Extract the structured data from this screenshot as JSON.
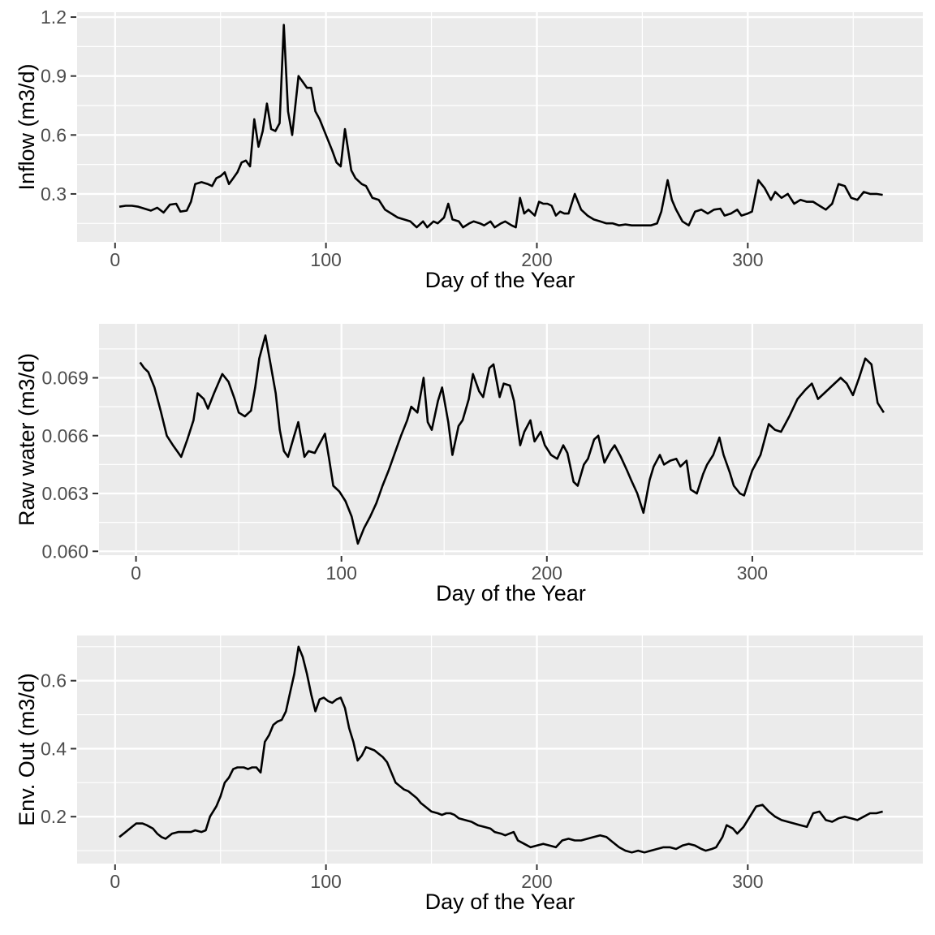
{
  "page": {
    "kind": "stacked-line-charts",
    "background": "#ffffff"
  },
  "style": {
    "panel_fill": "#EBEBEB",
    "grid_major_color": "#FFFFFF",
    "grid_minor_color": "#FFFFFF",
    "line_color": "#000000",
    "tick_label_color": "#4D4D4D",
    "tick_mark_color": "#333333",
    "axis_title_color": "#000000"
  },
  "chart_data": [
    {
      "type": "line",
      "title": "",
      "xlabel": "Day of the Year",
      "ylabel": "Inflow (m3/d)",
      "legend": "none",
      "grid": true,
      "xlim": [
        -18,
        383
      ],
      "ylim": [
        0.056,
        1.225
      ],
      "x_ticks": [
        0,
        100,
        200,
        300
      ],
      "x_tick_labels": [
        "0",
        "100",
        "200",
        "300"
      ],
      "x_minor_ticks": [
        50,
        150,
        250,
        350
      ],
      "y_ticks": [
        0.3,
        0.6,
        0.9,
        1.2
      ],
      "y_tick_labels": [
        "0.3",
        "0.6",
        "0.9",
        "1.2"
      ],
      "y_minor_ticks": [
        0.15,
        0.45,
        0.75,
        1.05
      ],
      "series": [
        {
          "name": "inflow",
          "x": [
            2,
            5,
            8,
            11,
            14,
            17,
            20,
            23,
            26,
            29,
            31,
            34,
            36,
            38,
            41,
            44,
            46,
            48,
            50,
            52,
            54,
            56,
            58,
            60,
            62,
            64,
            66,
            68,
            70,
            72,
            74,
            76,
            78,
            80,
            82,
            84,
            87,
            89,
            91,
            93,
            95,
            97,
            100,
            103,
            105,
            107,
            109,
            112,
            114,
            117,
            119,
            122,
            125,
            128,
            131,
            134,
            137,
            140,
            143,
            146,
            148,
            151,
            153,
            156,
            158,
            160,
            163,
            165,
            168,
            170,
            173,
            175,
            178,
            180,
            183,
            185,
            188,
            190,
            192,
            194,
            196,
            199,
            201,
            203,
            205,
            207,
            209,
            211,
            213,
            215,
            218,
            221,
            224,
            227,
            230,
            233,
            236,
            239,
            242,
            245,
            248,
            251,
            254,
            257,
            259,
            262,
            264,
            266,
            269,
            272,
            275,
            278,
            281,
            284,
            287,
            289,
            292,
            295,
            297,
            300,
            302,
            305,
            308,
            311,
            313,
            316,
            319,
            322,
            325,
            328,
            331,
            334,
            337,
            340,
            343,
            346,
            349,
            352,
            355,
            358,
            361,
            364
          ],
          "y": [
            0.235,
            0.24,
            0.24,
            0.235,
            0.225,
            0.215,
            0.23,
            0.205,
            0.245,
            0.25,
            0.21,
            0.215,
            0.26,
            0.35,
            0.36,
            0.35,
            0.34,
            0.38,
            0.39,
            0.41,
            0.35,
            0.38,
            0.41,
            0.46,
            0.47,
            0.44,
            0.68,
            0.54,
            0.62,
            0.76,
            0.63,
            0.62,
            0.66,
            1.16,
            0.72,
            0.6,
            0.9,
            0.87,
            0.84,
            0.84,
            0.72,
            0.68,
            0.6,
            0.52,
            0.46,
            0.44,
            0.63,
            0.42,
            0.38,
            0.35,
            0.34,
            0.28,
            0.27,
            0.22,
            0.2,
            0.18,
            0.17,
            0.16,
            0.13,
            0.16,
            0.13,
            0.16,
            0.15,
            0.18,
            0.25,
            0.17,
            0.16,
            0.13,
            0.15,
            0.16,
            0.15,
            0.14,
            0.16,
            0.13,
            0.15,
            0.16,
            0.14,
            0.13,
            0.28,
            0.2,
            0.22,
            0.19,
            0.26,
            0.25,
            0.25,
            0.24,
            0.19,
            0.21,
            0.2,
            0.2,
            0.3,
            0.22,
            0.19,
            0.17,
            0.16,
            0.15,
            0.15,
            0.14,
            0.145,
            0.14,
            0.14,
            0.14,
            0.14,
            0.15,
            0.21,
            0.37,
            0.27,
            0.22,
            0.16,
            0.14,
            0.21,
            0.22,
            0.2,
            0.22,
            0.225,
            0.19,
            0.2,
            0.22,
            0.19,
            0.2,
            0.21,
            0.37,
            0.33,
            0.27,
            0.31,
            0.28,
            0.3,
            0.25,
            0.27,
            0.26,
            0.26,
            0.24,
            0.22,
            0.25,
            0.35,
            0.34,
            0.28,
            0.27,
            0.31,
            0.3,
            0.3,
            0.295
          ]
        }
      ]
    },
    {
      "type": "line",
      "title": "",
      "xlabel": "Day of the Year",
      "ylabel": "Raw water (m3/d)",
      "legend": "none",
      "grid": true,
      "xlim": [
        -18,
        383
      ],
      "ylim": [
        0.0598,
        0.0718
      ],
      "x_ticks": [
        0,
        100,
        200,
        300
      ],
      "x_tick_labels": [
        "0",
        "100",
        "200",
        "300"
      ],
      "x_minor_ticks": [
        50,
        150,
        250,
        350
      ],
      "y_ticks": [
        0.06,
        0.063,
        0.066,
        0.069
      ],
      "y_tick_labels": [
        "0.060",
        "0.063",
        "0.066",
        "0.069"
      ],
      "y_minor_ticks": [
        0.0615,
        0.0645,
        0.0675,
        0.0705
      ],
      "series": [
        {
          "name": "raw_water",
          "x": [
            2,
            4,
            6,
            9,
            12,
            15,
            18,
            20,
            22,
            25,
            28,
            30,
            33,
            35,
            38,
            40,
            42,
            45,
            48,
            50,
            53,
            56,
            58,
            60,
            63,
            65,
            68,
            70,
            72,
            74,
            77,
            79,
            82,
            84,
            87,
            89,
            92,
            94,
            96,
            99,
            102,
            105,
            108,
            111,
            114,
            117,
            120,
            123,
            126,
            129,
            132,
            134,
            137,
            140,
            142,
            144,
            147,
            149,
            152,
            154,
            157,
            159,
            162,
            164,
            167,
            169,
            172,
            174,
            177,
            179,
            182,
            184,
            187,
            189,
            192,
            194,
            197,
            199,
            202,
            205,
            208,
            210,
            213,
            215,
            218,
            220,
            223,
            225,
            228,
            231,
            233,
            236,
            239,
            241,
            244,
            247,
            250,
            252,
            255,
            257,
            260,
            263,
            265,
            268,
            270,
            273,
            276,
            278,
            281,
            284,
            286,
            289,
            291,
            294,
            296,
            300,
            304,
            308,
            311,
            314,
            318,
            322,
            326,
            329,
            332,
            335,
            339,
            343,
            346,
            349,
            352,
            355,
            358,
            361,
            364
          ],
          "y": [
            0.0698,
            0.0695,
            0.0693,
            0.0685,
            0.0673,
            0.066,
            0.0655,
            0.0652,
            0.0649,
            0.0658,
            0.0668,
            0.0682,
            0.0679,
            0.0674,
            0.0682,
            0.0687,
            0.0692,
            0.0688,
            0.0679,
            0.0672,
            0.067,
            0.0673,
            0.0685,
            0.07,
            0.0712,
            0.07,
            0.0682,
            0.0663,
            0.0652,
            0.0649,
            0.066,
            0.0667,
            0.0649,
            0.0652,
            0.0651,
            0.0655,
            0.0661,
            0.0648,
            0.0634,
            0.0631,
            0.0626,
            0.0618,
            0.0604,
            0.0612,
            0.0618,
            0.0625,
            0.0634,
            0.0642,
            0.0651,
            0.066,
            0.0668,
            0.0675,
            0.0672,
            0.069,
            0.0667,
            0.0663,
            0.0678,
            0.0685,
            0.0667,
            0.065,
            0.0665,
            0.0668,
            0.0679,
            0.0692,
            0.0683,
            0.068,
            0.0695,
            0.0697,
            0.068,
            0.0687,
            0.0686,
            0.0678,
            0.0655,
            0.0662,
            0.0668,
            0.0657,
            0.0662,
            0.0655,
            0.065,
            0.0648,
            0.0655,
            0.0651,
            0.0636,
            0.0634,
            0.0645,
            0.0648,
            0.0658,
            0.066,
            0.0646,
            0.0652,
            0.0655,
            0.0649,
            0.0642,
            0.0637,
            0.063,
            0.062,
            0.0637,
            0.0644,
            0.065,
            0.0645,
            0.0647,
            0.0648,
            0.0644,
            0.0647,
            0.0632,
            0.063,
            0.064,
            0.0645,
            0.065,
            0.0659,
            0.065,
            0.0641,
            0.0634,
            0.063,
            0.0629,
            0.0642,
            0.065,
            0.0666,
            0.0663,
            0.0662,
            0.067,
            0.0679,
            0.0684,
            0.0687,
            0.0679,
            0.0682,
            0.0686,
            0.069,
            0.0687,
            0.0681,
            0.069,
            0.07,
            0.0697,
            0.0677,
            0.0672
          ]
        }
      ]
    },
    {
      "type": "line",
      "title": "",
      "xlabel": "Day of the Year",
      "ylabel": "Env. Out (m3/d)",
      "legend": "none",
      "grid": true,
      "xlim": [
        -18,
        383
      ],
      "ylim": [
        0.062,
        0.733
      ],
      "x_ticks": [
        0,
        100,
        200,
        300
      ],
      "x_tick_labels": [
        "0",
        "100",
        "200",
        "300"
      ],
      "x_minor_ticks": [
        50,
        150,
        250,
        350
      ],
      "y_ticks": [
        0.2,
        0.4,
        0.6
      ],
      "y_tick_labels": [
        "0.2",
        "0.4",
        "0.6"
      ],
      "y_minor_ticks": [
        0.1,
        0.3,
        0.5,
        0.7
      ],
      "series": [
        {
          "name": "env_out",
          "x": [
            2,
            5,
            8,
            10,
            13,
            15,
            18,
            20,
            22,
            24,
            27,
            30,
            33,
            36,
            38,
            41,
            43,
            45,
            48,
            50,
            52,
            54,
            56,
            58,
            61,
            63,
            65,
            67,
            69,
            71,
            73,
            75,
            77,
            79,
            81,
            83,
            85,
            87,
            89,
            91,
            93,
            95,
            97,
            99,
            101,
            103,
            105,
            107,
            109,
            111,
            113,
            115,
            117,
            119,
            121,
            123,
            125,
            127,
            129,
            131,
            133,
            135,
            137,
            139,
            141,
            143,
            145,
            147,
            150,
            153,
            155,
            157,
            159,
            161,
            163,
            166,
            169,
            172,
            175,
            178,
            180,
            183,
            185,
            187,
            189,
            191,
            194,
            197,
            200,
            203,
            206,
            209,
            212,
            215,
            218,
            221,
            224,
            227,
            230,
            233,
            236,
            239,
            242,
            245,
            248,
            251,
            254,
            257,
            260,
            263,
            266,
            269,
            272,
            275,
            278,
            280,
            283,
            285,
            288,
            290,
            293,
            295,
            298,
            301,
            304,
            307,
            310,
            313,
            316,
            319,
            322,
            325,
            328,
            331,
            334,
            337,
            340,
            343,
            346,
            349,
            352,
            355,
            358,
            361,
            364
          ],
          "y": [
            0.14,
            0.155,
            0.17,
            0.18,
            0.18,
            0.175,
            0.165,
            0.15,
            0.14,
            0.135,
            0.15,
            0.155,
            0.155,
            0.155,
            0.16,
            0.155,
            0.16,
            0.2,
            0.23,
            0.26,
            0.3,
            0.315,
            0.34,
            0.345,
            0.345,
            0.34,
            0.345,
            0.345,
            0.33,
            0.42,
            0.44,
            0.47,
            0.48,
            0.485,
            0.51,
            0.565,
            0.62,
            0.7,
            0.67,
            0.62,
            0.56,
            0.51,
            0.545,
            0.55,
            0.54,
            0.535,
            0.545,
            0.55,
            0.52,
            0.46,
            0.42,
            0.365,
            0.38,
            0.405,
            0.4,
            0.395,
            0.385,
            0.375,
            0.36,
            0.33,
            0.3,
            0.29,
            0.28,
            0.275,
            0.265,
            0.255,
            0.24,
            0.23,
            0.215,
            0.21,
            0.205,
            0.21,
            0.21,
            0.205,
            0.195,
            0.19,
            0.185,
            0.175,
            0.17,
            0.165,
            0.155,
            0.15,
            0.145,
            0.15,
            0.155,
            0.13,
            0.12,
            0.11,
            0.115,
            0.12,
            0.115,
            0.11,
            0.13,
            0.135,
            0.13,
            0.13,
            0.135,
            0.14,
            0.145,
            0.14,
            0.125,
            0.11,
            0.1,
            0.095,
            0.1,
            0.095,
            0.1,
            0.105,
            0.11,
            0.11,
            0.105,
            0.115,
            0.12,
            0.115,
            0.105,
            0.1,
            0.105,
            0.11,
            0.14,
            0.175,
            0.165,
            0.15,
            0.17,
            0.2,
            0.23,
            0.235,
            0.215,
            0.2,
            0.19,
            0.185,
            0.18,
            0.175,
            0.17,
            0.21,
            0.215,
            0.19,
            0.185,
            0.195,
            0.2,
            0.195,
            0.19,
            0.2,
            0.21,
            0.21,
            0.215
          ]
        }
      ]
    }
  ]
}
